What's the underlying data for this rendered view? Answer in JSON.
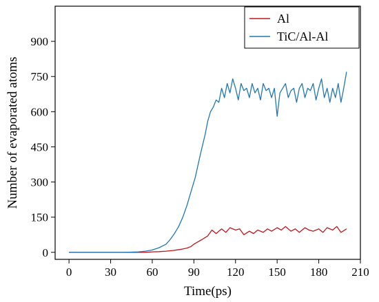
{
  "chart_data": {
    "type": "line",
    "xlabel": "Time(ps)",
    "ylabel": "Number of evaporated atoms",
    "xlim": [
      -10,
      210
    ],
    "ylim": [
      -30,
      1050
    ],
    "xticks": [
      0,
      30,
      60,
      90,
      120,
      150,
      180,
      210
    ],
    "yticks": [
      0,
      150,
      300,
      450,
      600,
      750,
      900
    ],
    "grid": false,
    "legend_position": "top-right",
    "series": [
      {
        "name": "Al",
        "color": "#c0141c",
        "x": [
          0,
          20,
          40,
          55,
          60,
          65,
          70,
          75,
          80,
          85,
          88,
          90,
          93,
          96,
          100,
          103,
          106,
          110,
          113,
          116,
          120,
          123,
          126,
          130,
          133,
          136,
          140,
          143,
          146,
          150,
          153,
          156,
          160,
          163,
          166,
          170,
          173,
          176,
          180,
          183,
          186,
          190,
          193,
          196,
          200
        ],
        "y": [
          0,
          0,
          0,
          0,
          2,
          3,
          5,
          8,
          12,
          18,
          25,
          35,
          45,
          55,
          70,
          95,
          80,
          100,
          85,
          105,
          95,
          100,
          75,
          90,
          80,
          95,
          85,
          100,
          90,
          105,
          95,
          110,
          90,
          100,
          85,
          105,
          95,
          90,
          100,
          85,
          105,
          95,
          110,
          85,
          100
        ]
      },
      {
        "name": "TiC/Al-Al",
        "color": "#1f77b4",
        "x": [
          0,
          20,
          40,
          50,
          55,
          60,
          65,
          70,
          73,
          76,
          79,
          82,
          85,
          88,
          91,
          94,
          96,
          98,
          100,
          102,
          104,
          106,
          108,
          110,
          112,
          114,
          116,
          118,
          120,
          122,
          124,
          126,
          128,
          130,
          132,
          134,
          136,
          138,
          140,
          142,
          144,
          146,
          148,
          150,
          152,
          154,
          156,
          158,
          160,
          162,
          164,
          166,
          168,
          170,
          172,
          174,
          176,
          178,
          180,
          182,
          184,
          186,
          188,
          190,
          192,
          194,
          196,
          198,
          200
        ],
        "y": [
          0,
          0,
          0,
          2,
          5,
          10,
          20,
          35,
          55,
          80,
          110,
          150,
          200,
          260,
          320,
          400,
          450,
          500,
          560,
          600,
          620,
          650,
          640,
          700,
          660,
          720,
          680,
          740,
          700,
          650,
          720,
          690,
          700,
          660,
          720,
          680,
          700,
          650,
          720,
          690,
          700,
          660,
          700,
          580,
          680,
          700,
          720,
          660,
          690,
          700,
          640,
          700,
          720,
          660,
          700,
          690,
          720,
          650,
          700,
          740,
          660,
          700,
          640,
          700,
          660,
          720,
          640,
          700,
          770
        ]
      }
    ]
  }
}
